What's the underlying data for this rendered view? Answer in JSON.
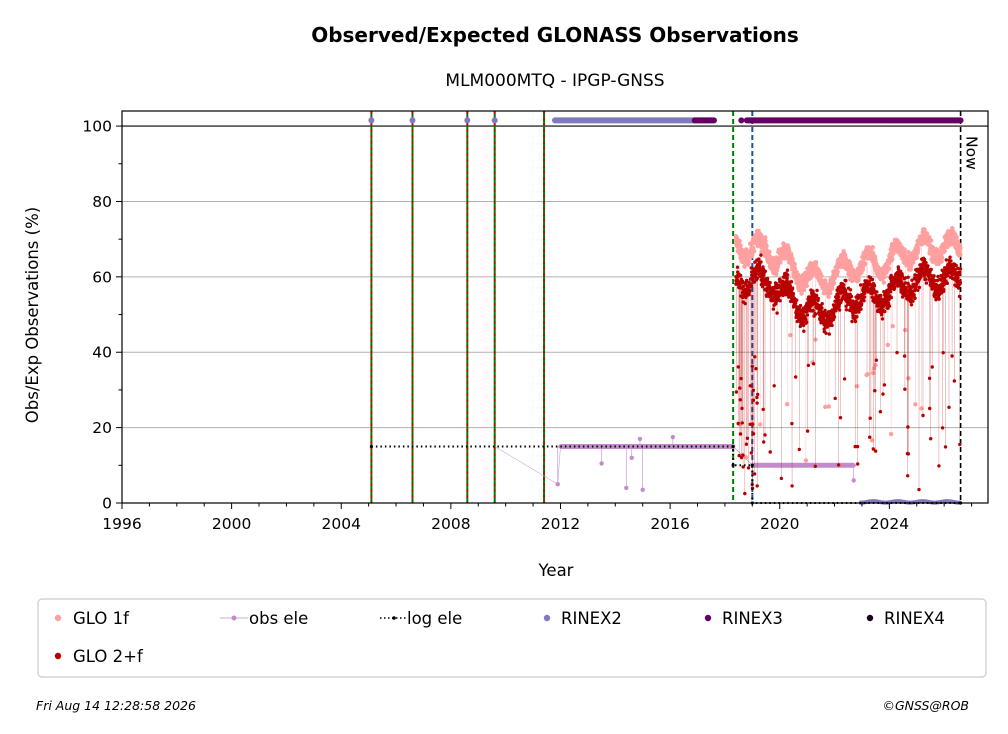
{
  "chart_data": {
    "type": "scatter",
    "title": "Observed/Expected GLONASS Observations",
    "subtitle": "MLM000MTQ - IPGP-GNSS",
    "xlabel": "Year",
    "ylabel": "Obs/Exp Observations (%)",
    "xlim": [
      1996,
      2027.6
    ],
    "ylim": [
      0,
      104
    ],
    "xticks": [
      1996,
      2000,
      2004,
      2008,
      2012,
      2016,
      2020,
      2024
    ],
    "yticks": [
      0,
      20,
      40,
      60,
      80,
      100
    ],
    "grid": "horizontal",
    "legend_position": "bottom",
    "now_label": "Now",
    "now_x": 2026.6,
    "colors": {
      "glo1f": "#ff9f9f",
      "glo2f": "#b80000",
      "obs_ele": "#c38bcc",
      "log_ele": "#000000",
      "rinex2": "#8079c0",
      "rinex3": "#640064",
      "rinex4": "#1c0020",
      "green_line": "#008000",
      "red_line": "#cc0000",
      "blue_line": "#1f4fa0"
    },
    "vertical_events": [
      {
        "x": 2005.1,
        "style": "red-green"
      },
      {
        "x": 2006.6,
        "style": "red-green"
      },
      {
        "x": 2008.6,
        "style": "red-green"
      },
      {
        "x": 2009.6,
        "style": "red-green"
      },
      {
        "x": 2011.4,
        "style": "red-green"
      },
      {
        "x": 2018.3,
        "style": "green"
      },
      {
        "x": 2019.0,
        "style": "blue"
      }
    ],
    "series": [
      {
        "name": "GLO 1f",
        "summary": {
          "start": 2018.4,
          "end": 2026.6,
          "typical_range": [
            58,
            74
          ]
        }
      },
      {
        "name": "GLO 2+f",
        "summary": {
          "start": 2018.4,
          "end": 2026.6,
          "typical_range": [
            44,
            66
          ]
        }
      },
      {
        "name": "obs ele",
        "points": [
          [
            2011.9,
            5
          ],
          [
            2012.0,
            15
          ],
          [
            2013.5,
            10.5
          ],
          [
            2014.4,
            4
          ],
          [
            2014.6,
            12
          ],
          [
            2014.9,
            17
          ],
          [
            2015.0,
            3.5
          ],
          [
            2016.1,
            17.5
          ],
          [
            2018.3,
            15
          ],
          [
            2019.0,
            10
          ],
          [
            2022.7,
            10
          ],
          [
            2022.7,
            6
          ]
        ]
      },
      {
        "name": "log ele",
        "points": [
          [
            2005.1,
            15
          ],
          [
            2018.3,
            15
          ],
          [
            2018.3,
            10
          ],
          [
            2019.0,
            10
          ],
          [
            2019.0,
            0
          ],
          [
            2026.6,
            0
          ]
        ]
      },
      {
        "name": "RINEX2",
        "segments": [
          [
            2011.8,
            2016.9
          ]
        ],
        "points": [
          2005.1,
          2006.6,
          2008.6,
          2009.6
        ]
      },
      {
        "name": "RINEX3",
        "segments": [
          [
            2016.9,
            2017.6
          ],
          [
            2018.8,
            2026.6
          ]
        ]
      },
      {
        "name": "RINEX4",
        "segments": []
      }
    ],
    "footer_left": "Fri Aug 14 12:28:58 2026",
    "footer_right": "©GNSS@ROB"
  }
}
